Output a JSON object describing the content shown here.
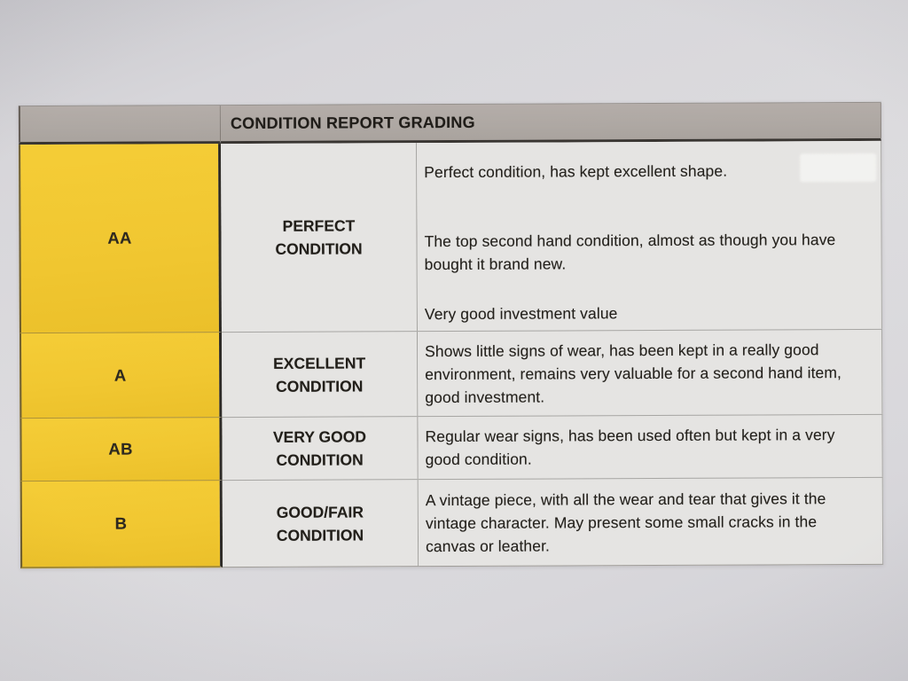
{
  "table": {
    "title": "CONDITION REPORT GRADING",
    "rows": [
      {
        "grade": "AA",
        "label": "PERFECT CONDITION",
        "paragraphs": [
          "Perfect condition, has kept excellent shape.",
          "The top second hand condition, almost as though you have bought it brand new.",
          "Very good investment value"
        ]
      },
      {
        "grade": "A",
        "label": "EXCELLENT CONDITION",
        "description": "Shows little signs of wear, has been kept in a really good environment, remains very valuable for a second hand item, good investment."
      },
      {
        "grade": "AB",
        "label": "VERY GOOD CONDITION",
        "description": "Regular wear signs, has been used often but kept in a very good condition."
      },
      {
        "grade": "B",
        "label": "GOOD/FAIR CONDITION",
        "description": "A vintage piece, with all the wear and tear that gives it the vintage character. May present some small cracks in the canvas or leather."
      }
    ]
  },
  "colors": {
    "grade_column_yellow": "#F0C426",
    "header_gray": "#AAA39E",
    "cell_background": "#E4E3E1",
    "page_background": "#D6D5D8",
    "text": "#17140F"
  }
}
